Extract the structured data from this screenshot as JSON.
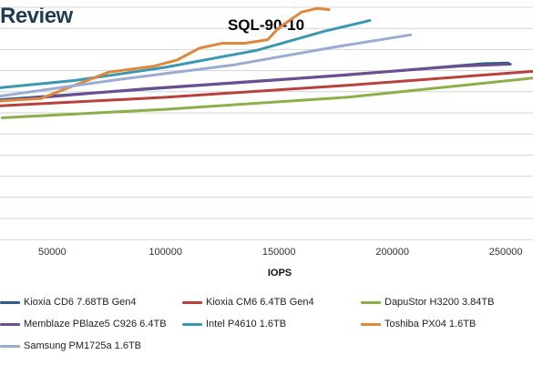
{
  "brand": "Review",
  "chart_data": {
    "type": "line",
    "title": "SQL-90-10",
    "xlabel": "IOPS",
    "ylabel": "",
    "xlim": [
      27000,
      262000
    ],
    "ylim": [
      0,
      100
    ],
    "xticks": [
      "50000",
      "100000",
      "150000",
      "200000",
      "250000"
    ],
    "xtick_values": [
      50000,
      100000,
      150000,
      200000,
      250000
    ],
    "grid": true,
    "legend_position": "bottom",
    "series": [
      {
        "name": "Kioxia CD6 7.68TB Gen4",
        "color": "#2e5a8c",
        "points": [
          [
            27000,
            58.5
          ],
          [
            100000,
            63.5
          ],
          [
            180000,
            68.8
          ],
          [
            240000,
            73.5
          ],
          [
            251000,
            73.8
          ]
        ]
      },
      {
        "name": "Kioxia CM6 6.4TB Gen4",
        "color": "#b8403d",
        "points": [
          [
            27000,
            56
          ],
          [
            100000,
            59.5
          ],
          [
            180000,
            64.5
          ],
          [
            262000,
            70.3
          ]
        ]
      },
      {
        "name": "DapuStor H3200 3.84TB",
        "color": "#8cb048",
        "points": [
          [
            28000,
            51
          ],
          [
            100000,
            54.5
          ],
          [
            180000,
            59.5
          ],
          [
            262000,
            67.5
          ]
        ]
      },
      {
        "name": "Memblaze PBlaze5 C926 6.4TB",
        "color": "#6b4f91",
        "points": [
          [
            27000,
            58
          ],
          [
            90000,
            63
          ],
          [
            160000,
            67.5
          ],
          [
            230000,
            72.5
          ],
          [
            252000,
            73.3
          ]
        ]
      },
      {
        "name": "Intel P4610 1.6TB",
        "color": "#3a98b0",
        "points": [
          [
            27000,
            63.5
          ],
          [
            60000,
            66.5
          ],
          [
            100000,
            72
          ],
          [
            140000,
            79
          ],
          [
            170000,
            87
          ],
          [
            188000,
            91
          ],
          [
            190000,
            91.5
          ]
        ]
      },
      {
        "name": "Toshiba PX04 1.6TB",
        "color": "#e0883a",
        "points": [
          [
            27000,
            58
          ],
          [
            45000,
            59
          ],
          [
            60000,
            64.5
          ],
          [
            75000,
            70
          ],
          [
            95000,
            72.5
          ],
          [
            105000,
            75
          ],
          [
            115000,
            80
          ],
          [
            125000,
            82
          ],
          [
            135000,
            82
          ],
          [
            145000,
            83.5
          ],
          [
            150000,
            88.5
          ],
          [
            160000,
            95
          ],
          [
            167000,
            96.5
          ],
          [
            172000,
            96
          ]
        ]
      },
      {
        "name": "Samsung PM1725a 1.6TB",
        "color": "#9aacd1",
        "points": [
          [
            27000,
            60
          ],
          [
            80000,
            67
          ],
          [
            130000,
            73
          ],
          [
            175000,
            80.5
          ],
          [
            208000,
            85.5
          ]
        ]
      }
    ]
  }
}
